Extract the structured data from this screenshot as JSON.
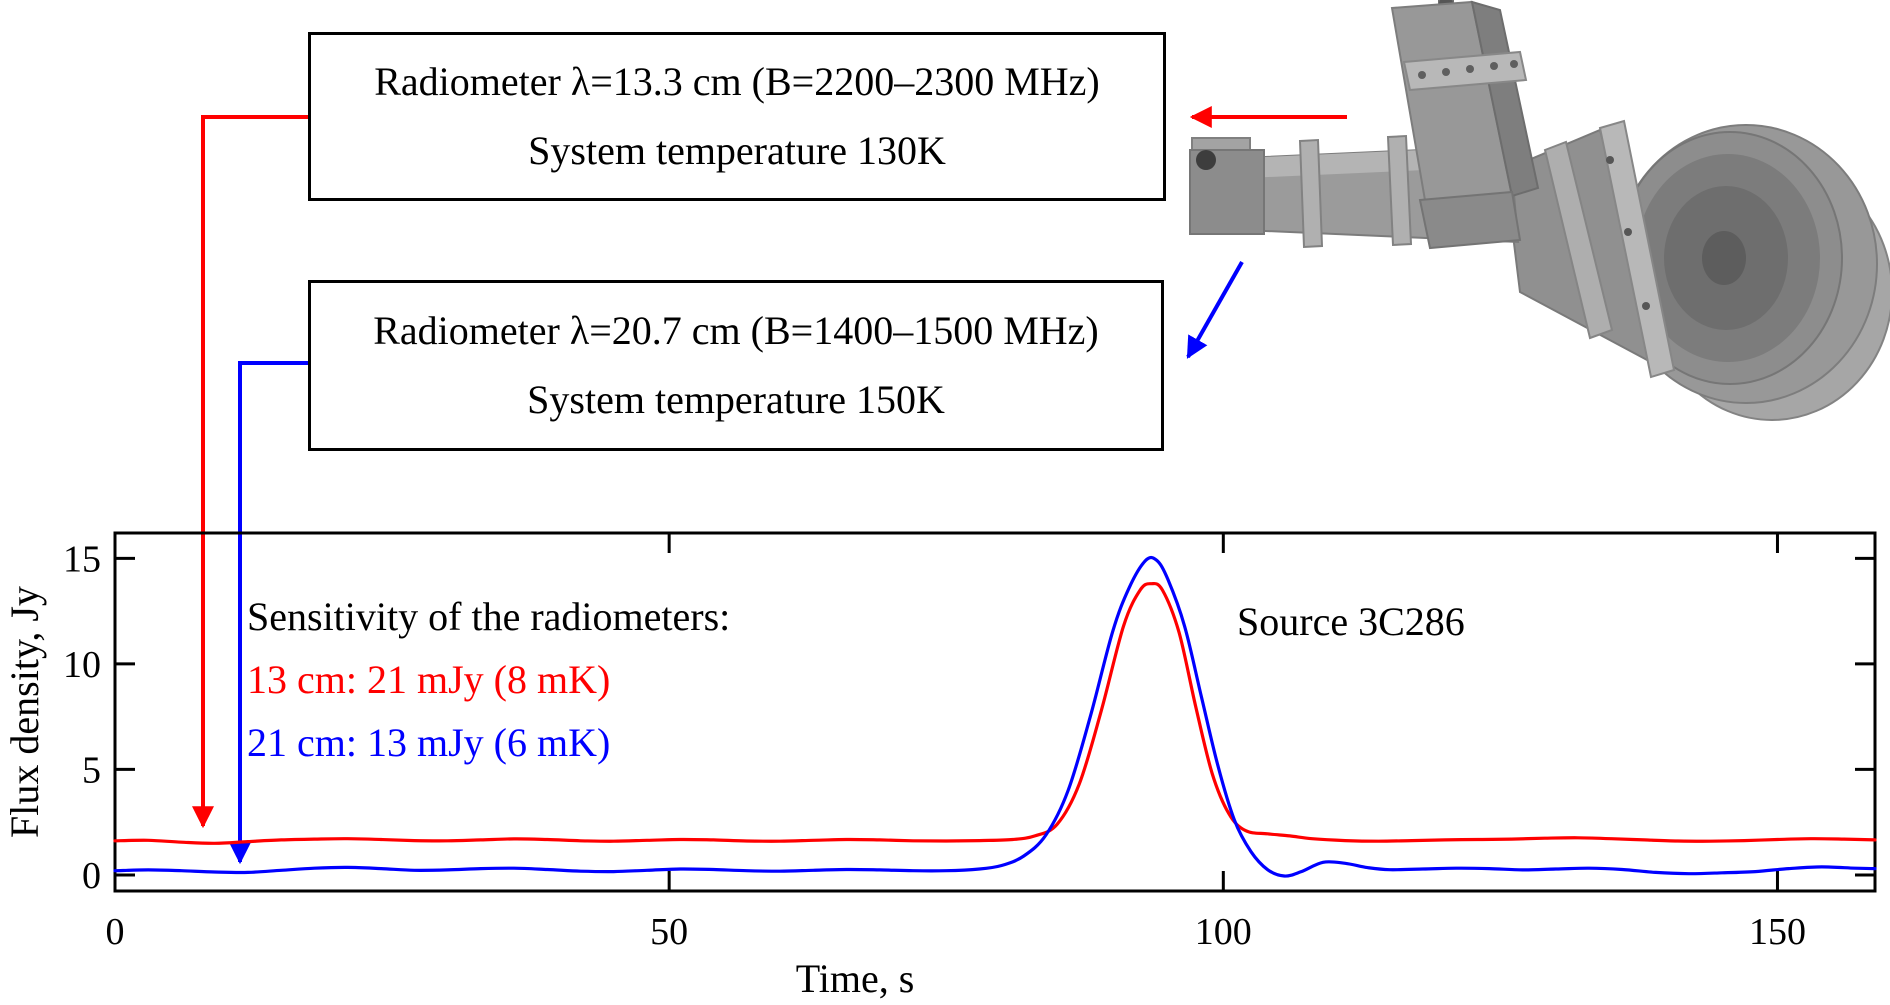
{
  "colors": {
    "series_13cm": "#ff0000",
    "series_21cm": "#0000ff",
    "frame": "#000000",
    "instrument_gray": "#999999"
  },
  "boxes": [
    {
      "line1": "Radiometer λ=13.3 cm (B=2200–2300 MHz)",
      "line2": "System temperature 130K"
    },
    {
      "line1": "Radiometer λ=20.7 cm (B=1400–1500 MHz)",
      "line2": "System temperature 150K"
    }
  ],
  "annotations": {
    "sensitivity_title": "Sensitivity of the radiometers:",
    "sensitivity_13": "13 cm: 21 mJy (8 mK)",
    "sensitivity_21": "21 cm: 13 mJy (6 mK)",
    "source": "Source 3C286"
  },
  "chart_data": {
    "type": "line",
    "title": "",
    "xlabel": "Time, s",
    "ylabel": "Flux density, Jy",
    "xlim": [
      0,
      158.8
    ],
    "ylim": [
      -0.76,
      16.2
    ],
    "xticks": [
      0,
      50,
      100,
      150
    ],
    "yticks": [
      0,
      5,
      10,
      15
    ],
    "grid": false,
    "legend_position": "none (colored text annotations inside plot)",
    "series": [
      {
        "name": "13 cm radiometer (2200–2300 MHz), sensitivity 21 mJy (8 mK)",
        "color": "#ff0000",
        "peak": {
          "time_s": 93.5,
          "flux_jy": 13.8
        },
        "baseline_jy": 1.65,
        "points": [
          [
            0,
            1.62
          ],
          [
            3,
            1.64
          ],
          [
            6,
            1.55
          ],
          [
            9,
            1.5
          ],
          [
            12,
            1.58
          ],
          [
            15,
            1.66
          ],
          [
            18,
            1.7
          ],
          [
            21,
            1.72
          ],
          [
            24,
            1.68
          ],
          [
            27,
            1.63
          ],
          [
            30,
            1.62
          ],
          [
            33,
            1.66
          ],
          [
            36,
            1.71
          ],
          [
            39,
            1.68
          ],
          [
            42,
            1.62
          ],
          [
            45,
            1.6
          ],
          [
            48,
            1.64
          ],
          [
            51,
            1.68
          ],
          [
            54,
            1.66
          ],
          [
            57,
            1.61
          ],
          [
            60,
            1.6
          ],
          [
            63,
            1.64
          ],
          [
            66,
            1.68
          ],
          [
            69,
            1.66
          ],
          [
            72,
            1.62
          ],
          [
            75,
            1.61
          ],
          [
            78,
            1.63
          ],
          [
            81,
            1.68
          ],
          [
            83,
            1.85
          ],
          [
            85,
            2.4
          ],
          [
            87,
            4.3
          ],
          [
            89,
            7.8
          ],
          [
            91,
            11.8
          ],
          [
            92.5,
            13.5
          ],
          [
            93.5,
            13.8
          ],
          [
            94.5,
            13.5
          ],
          [
            96,
            11.5
          ],
          [
            97.5,
            8.0
          ],
          [
            99,
            4.8
          ],
          [
            100.5,
            2.9
          ],
          [
            102,
            2.1
          ],
          [
            104,
            1.95
          ],
          [
            106,
            1.85
          ],
          [
            108,
            1.72
          ],
          [
            111,
            1.63
          ],
          [
            114,
            1.6
          ],
          [
            117,
            1.63
          ],
          [
            120,
            1.66
          ],
          [
            123,
            1.68
          ],
          [
            126,
            1.7
          ],
          [
            129,
            1.74
          ],
          [
            132,
            1.76
          ],
          [
            135,
            1.72
          ],
          [
            138,
            1.66
          ],
          [
            141,
            1.61
          ],
          [
            144,
            1.6
          ],
          [
            147,
            1.63
          ],
          [
            150,
            1.68
          ],
          [
            153,
            1.72
          ],
          [
            156,
            1.7
          ],
          [
            158.8,
            1.66
          ]
        ]
      },
      {
        "name": "21 cm radiometer (1400–1500 MHz), sensitivity 13 mJy (6 mK)",
        "color": "#0000ff",
        "peak": {
          "time_s": 93.5,
          "flux_jy": 15.0
        },
        "baseline_jy": 0.25,
        "points": [
          [
            0,
            0.2
          ],
          [
            3,
            0.24
          ],
          [
            6,
            0.2
          ],
          [
            9,
            0.14
          ],
          [
            12,
            0.12
          ],
          [
            15,
            0.22
          ],
          [
            18,
            0.32
          ],
          [
            21,
            0.36
          ],
          [
            24,
            0.3
          ],
          [
            27,
            0.22
          ],
          [
            30,
            0.24
          ],
          [
            33,
            0.3
          ],
          [
            36,
            0.32
          ],
          [
            39,
            0.26
          ],
          [
            42,
            0.18
          ],
          [
            45,
            0.16
          ],
          [
            48,
            0.22
          ],
          [
            51,
            0.28
          ],
          [
            54,
            0.26
          ],
          [
            57,
            0.2
          ],
          [
            60,
            0.18
          ],
          [
            63,
            0.22
          ],
          [
            66,
            0.26
          ],
          [
            69,
            0.24
          ],
          [
            72,
            0.2
          ],
          [
            75,
            0.2
          ],
          [
            78,
            0.28
          ],
          [
            80,
            0.45
          ],
          [
            82,
            0.9
          ],
          [
            84,
            1.9
          ],
          [
            86,
            4.0
          ],
          [
            88,
            7.5
          ],
          [
            90,
            11.5
          ],
          [
            91.5,
            13.6
          ],
          [
            93,
            14.9
          ],
          [
            94,
            14.9
          ],
          [
            95,
            14.0
          ],
          [
            96.5,
            11.8
          ],
          [
            98,
            8.5
          ],
          [
            99.5,
            5.2
          ],
          [
            101,
            2.6
          ],
          [
            102.5,
            1.1
          ],
          [
            104,
            0.25
          ],
          [
            105.5,
            -0.05
          ],
          [
            107,
            0.15
          ],
          [
            109,
            0.6
          ],
          [
            111,
            0.55
          ],
          [
            113,
            0.35
          ],
          [
            115,
            0.25
          ],
          [
            118,
            0.28
          ],
          [
            121,
            0.32
          ],
          [
            124,
            0.3
          ],
          [
            127,
            0.24
          ],
          [
            130,
            0.28
          ],
          [
            133,
            0.32
          ],
          [
            136,
            0.26
          ],
          [
            139,
            0.12
          ],
          [
            142,
            0.06
          ],
          [
            145,
            0.1
          ],
          [
            148,
            0.16
          ],
          [
            151,
            0.3
          ],
          [
            154,
            0.38
          ],
          [
            157,
            0.32
          ],
          [
            158.8,
            0.3
          ]
        ]
      }
    ]
  }
}
